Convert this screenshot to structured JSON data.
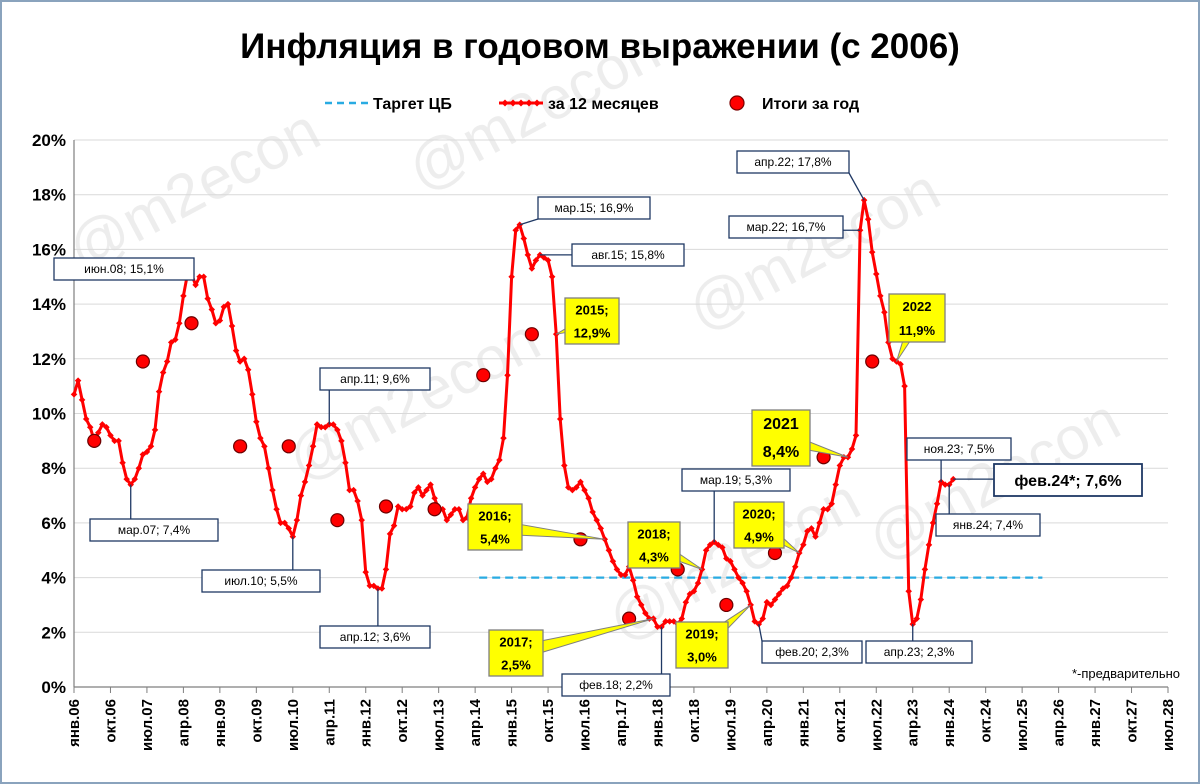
{
  "chart_data": {
    "type": "line",
    "title": "Инфляция в годовом выражении (с 2006)",
    "ylim": [
      0,
      20
    ],
    "xlim": [
      "2006-01",
      "2028-07"
    ],
    "y_ticks": [
      "0%",
      "2%",
      "4%",
      "6%",
      "8%",
      "10%",
      "12%",
      "14%",
      "16%",
      "18%",
      "20%"
    ],
    "x_ticks": [
      "янв.06",
      "окт.06",
      "июл.07",
      "апр.08",
      "янв.09",
      "окт.09",
      "июл.10",
      "апр.11",
      "янв.12",
      "окт.12",
      "июл.13",
      "апр.14",
      "янв.15",
      "окт.15",
      "июл.16",
      "апр.17",
      "янв.18",
      "окт.18",
      "июл.19",
      "апр.20",
      "янв.21",
      "окт.21",
      "июл.22",
      "апр.23",
      "янв.24",
      "окт.24",
      "июл.25",
      "апр.26",
      "янв.27",
      "окт.27",
      "июл.28"
    ],
    "grid": "horizontal",
    "legend_position": "top",
    "legend": {
      "target": "Таргет ЦБ",
      "monthly": "за 12 месяцев",
      "annual": "Итоги за год"
    },
    "target_series": {
      "value": 4,
      "from": "2014-05",
      "to": "2025-12",
      "color": "#29abe2"
    },
    "monthly_series": {
      "color": "#ff0000",
      "points": [
        [
          "2006-01",
          10.7
        ],
        [
          "2006-02",
          11.2
        ],
        [
          "2006-03",
          10.5
        ],
        [
          "2006-04",
          9.8
        ],
        [
          "2006-05",
          9.5
        ],
        [
          "2006-06",
          9.0
        ],
        [
          "2006-07",
          9.3
        ],
        [
          "2006-08",
          9.6
        ],
        [
          "2006-09",
          9.5
        ],
        [
          "2006-10",
          9.2
        ],
        [
          "2006-11",
          9.0
        ],
        [
          "2006-12",
          9.0
        ],
        [
          "2007-01",
          8.2
        ],
        [
          "2007-02",
          7.6
        ],
        [
          "2007-03",
          7.4
        ],
        [
          "2007-04",
          7.6
        ],
        [
          "2007-05",
          8.0
        ],
        [
          "2007-06",
          8.5
        ],
        [
          "2007-07",
          8.6
        ],
        [
          "2007-08",
          8.8
        ],
        [
          "2007-09",
          9.4
        ],
        [
          "2007-10",
          10.8
        ],
        [
          "2007-11",
          11.5
        ],
        [
          "2007-12",
          11.9
        ],
        [
          "2008-01",
          12.6
        ],
        [
          "2008-02",
          12.7
        ],
        [
          "2008-03",
          13.3
        ],
        [
          "2008-04",
          14.3
        ],
        [
          "2008-05",
          15.1
        ],
        [
          "2008-06",
          15.1
        ],
        [
          "2008-07",
          14.7
        ],
        [
          "2008-08",
          15.0
        ],
        [
          "2008-09",
          15.0
        ],
        [
          "2008-10",
          14.2
        ],
        [
          "2008-11",
          13.8
        ],
        [
          "2008-12",
          13.3
        ],
        [
          "2009-01",
          13.4
        ],
        [
          "2009-02",
          13.9
        ],
        [
          "2009-03",
          14.0
        ],
        [
          "2009-04",
          13.2
        ],
        [
          "2009-05",
          12.3
        ],
        [
          "2009-06",
          11.9
        ],
        [
          "2009-07",
          12.0
        ],
        [
          "2009-08",
          11.6
        ],
        [
          "2009-09",
          10.7
        ],
        [
          "2009-10",
          9.7
        ],
        [
          "2009-11",
          9.1
        ],
        [
          "2009-12",
          8.8
        ],
        [
          "2010-01",
          8.0
        ],
        [
          "2010-02",
          7.2
        ],
        [
          "2010-03",
          6.5
        ],
        [
          "2010-04",
          6.0
        ],
        [
          "2010-05",
          6.0
        ],
        [
          "2010-06",
          5.8
        ],
        [
          "2010-07",
          5.5
        ],
        [
          "2010-08",
          6.1
        ],
        [
          "2010-09",
          7.0
        ],
        [
          "2010-10",
          7.5
        ],
        [
          "2010-11",
          8.1
        ],
        [
          "2010-12",
          8.8
        ],
        [
          "2011-01",
          9.6
        ],
        [
          "2011-02",
          9.5
        ],
        [
          "2011-03",
          9.5
        ],
        [
          "2011-04",
          9.6
        ],
        [
          "2011-05",
          9.6
        ],
        [
          "2011-06",
          9.4
        ],
        [
          "2011-07",
          9.0
        ],
        [
          "2011-08",
          8.2
        ],
        [
          "2011-09",
          7.2
        ],
        [
          "2011-10",
          7.2
        ],
        [
          "2011-11",
          6.8
        ],
        [
          "2011-12",
          6.1
        ],
        [
          "2012-01",
          4.2
        ],
        [
          "2012-02",
          3.7
        ],
        [
          "2012-03",
          3.7
        ],
        [
          "2012-04",
          3.6
        ],
        [
          "2012-05",
          3.6
        ],
        [
          "2012-06",
          4.3
        ],
        [
          "2012-07",
          5.6
        ],
        [
          "2012-08",
          5.9
        ],
        [
          "2012-09",
          6.6
        ],
        [
          "2012-10",
          6.5
        ],
        [
          "2012-11",
          6.5
        ],
        [
          "2012-12",
          6.6
        ],
        [
          "2013-01",
          7.1
        ],
        [
          "2013-02",
          7.3
        ],
        [
          "2013-03",
          7.0
        ],
        [
          "2013-04",
          7.2
        ],
        [
          "2013-05",
          7.4
        ],
        [
          "2013-06",
          6.9
        ],
        [
          "2013-07",
          6.5
        ],
        [
          "2013-08",
          6.5
        ],
        [
          "2013-09",
          6.1
        ],
        [
          "2013-10",
          6.3
        ],
        [
          "2013-11",
          6.5
        ],
        [
          "2013-12",
          6.5
        ],
        [
          "2014-01",
          6.1
        ],
        [
          "2014-02",
          6.2
        ],
        [
          "2014-03",
          6.9
        ],
        [
          "2014-04",
          7.3
        ],
        [
          "2014-05",
          7.6
        ],
        [
          "2014-06",
          7.8
        ],
        [
          "2014-07",
          7.5
        ],
        [
          "2014-08",
          7.6
        ],
        [
          "2014-09",
          8.0
        ],
        [
          "2014-10",
          8.3
        ],
        [
          "2014-11",
          9.1
        ],
        [
          "2014-12",
          11.4
        ],
        [
          "2015-01",
          15.0
        ],
        [
          "2015-02",
          16.7
        ],
        [
          "2015-03",
          16.9
        ],
        [
          "2015-04",
          16.4
        ],
        [
          "2015-05",
          15.8
        ],
        [
          "2015-06",
          15.3
        ],
        [
          "2015-07",
          15.6
        ],
        [
          "2015-08",
          15.8
        ],
        [
          "2015-09",
          15.7
        ],
        [
          "2015-10",
          15.6
        ],
        [
          "2015-11",
          15.0
        ],
        [
          "2015-12",
          12.9
        ],
        [
          "2016-01",
          9.8
        ],
        [
          "2016-02",
          8.1
        ],
        [
          "2016-03",
          7.3
        ],
        [
          "2016-04",
          7.2
        ],
        [
          "2016-05",
          7.3
        ],
        [
          "2016-06",
          7.5
        ],
        [
          "2016-07",
          7.2
        ],
        [
          "2016-08",
          6.9
        ],
        [
          "2016-09",
          6.4
        ],
        [
          "2016-10",
          6.1
        ],
        [
          "2016-11",
          5.8
        ],
        [
          "2016-12",
          5.4
        ],
        [
          "2017-01",
          5.0
        ],
        [
          "2017-02",
          4.6
        ],
        [
          "2017-03",
          4.3
        ],
        [
          "2017-04",
          4.1
        ],
        [
          "2017-05",
          4.1
        ],
        [
          "2017-06",
          4.4
        ],
        [
          "2017-07",
          3.9
        ],
        [
          "2017-08",
          3.3
        ],
        [
          "2017-09",
          3.0
        ],
        [
          "2017-10",
          2.7
        ],
        [
          "2017-11",
          2.5
        ],
        [
          "2017-12",
          2.5
        ],
        [
          "2018-01",
          2.2
        ],
        [
          "2018-02",
          2.2
        ],
        [
          "2018-03",
          2.4
        ],
        [
          "2018-04",
          2.4
        ],
        [
          "2018-05",
          2.4
        ],
        [
          "2018-06",
          2.3
        ],
        [
          "2018-07",
          2.5
        ],
        [
          "2018-08",
          3.1
        ],
        [
          "2018-09",
          3.4
        ],
        [
          "2018-10",
          3.5
        ],
        [
          "2018-11",
          3.8
        ],
        [
          "2018-12",
          4.3
        ],
        [
          "2019-01",
          5.0
        ],
        [
          "2019-02",
          5.2
        ],
        [
          "2019-03",
          5.3
        ],
        [
          "2019-04",
          5.2
        ],
        [
          "2019-05",
          5.1
        ],
        [
          "2019-06",
          4.7
        ],
        [
          "2019-07",
          4.6
        ],
        [
          "2019-08",
          4.3
        ],
        [
          "2019-09",
          4.0
        ],
        [
          "2019-10",
          3.8
        ],
        [
          "2019-11",
          3.5
        ],
        [
          "2019-12",
          3.0
        ],
        [
          "2020-01",
          2.4
        ],
        [
          "2020-02",
          2.3
        ],
        [
          "2020-03",
          2.5
        ],
        [
          "2020-04",
          3.1
        ],
        [
          "2020-05",
          3.0
        ],
        [
          "2020-06",
          3.2
        ],
        [
          "2020-07",
          3.4
        ],
        [
          "2020-08",
          3.6
        ],
        [
          "2020-09",
          3.7
        ],
        [
          "2020-10",
          4.0
        ],
        [
          "2020-11",
          4.4
        ],
        [
          "2020-12",
          4.9
        ],
        [
          "2021-01",
          5.2
        ],
        [
          "2021-02",
          5.7
        ],
        [
          "2021-03",
          5.8
        ],
        [
          "2021-04",
          5.5
        ],
        [
          "2021-05",
          6.0
        ],
        [
          "2021-06",
          6.5
        ],
        [
          "2021-07",
          6.5
        ],
        [
          "2021-08",
          6.7
        ],
        [
          "2021-09",
          7.4
        ],
        [
          "2021-10",
          8.1
        ],
        [
          "2021-11",
          8.4
        ],
        [
          "2021-12",
          8.4
        ],
        [
          "2022-01",
          8.7
        ],
        [
          "2022-02",
          9.2
        ],
        [
          "2022-03",
          16.7
        ],
        [
          "2022-04",
          17.8
        ],
        [
          "2022-05",
          17.1
        ],
        [
          "2022-06",
          15.9
        ],
        [
          "2022-07",
          15.1
        ],
        [
          "2022-08",
          14.3
        ],
        [
          "2022-09",
          13.7
        ],
        [
          "2022-10",
          12.6
        ],
        [
          "2022-11",
          12.0
        ],
        [
          "2022-12",
          11.9
        ],
        [
          "2023-01",
          11.8
        ],
        [
          "2023-02",
          11.0
        ],
        [
          "2023-03",
          3.5
        ],
        [
          "2023-04",
          2.3
        ],
        [
          "2023-05",
          2.5
        ],
        [
          "2023-06",
          3.2
        ],
        [
          "2023-07",
          4.3
        ],
        [
          "2023-08",
          5.2
        ],
        [
          "2023-09",
          6.0
        ],
        [
          "2023-10",
          6.7
        ],
        [
          "2023-11",
          7.5
        ],
        [
          "2023-12",
          7.4
        ],
        [
          "2024-01",
          7.4
        ],
        [
          "2024-02",
          7.6
        ]
      ]
    },
    "annual_series": {
      "color": "#ff0000",
      "points": [
        [
          "2006-06",
          9.0
        ],
        [
          "2007-06",
          11.9
        ],
        [
          "2008-06",
          13.3
        ],
        [
          "2009-06",
          8.8
        ],
        [
          "2010-06",
          8.8
        ],
        [
          "2011-06",
          6.1
        ],
        [
          "2012-06",
          6.6
        ],
        [
          "2013-06",
          6.5
        ],
        [
          "2014-06",
          11.4
        ],
        [
          "2015-06",
          12.9
        ],
        [
          "2016-06",
          5.4
        ],
        [
          "2017-06",
          2.5
        ],
        [
          "2018-06",
          4.3
        ],
        [
          "2019-06",
          3.0
        ],
        [
          "2020-06",
          4.9
        ],
        [
          "2021-06",
          8.4
        ],
        [
          "2022-06",
          11.9
        ]
      ]
    },
    "annotations": [
      {
        "id": "jun08",
        "text": "июн.08; 15,1%",
        "style": "white",
        "at": [
          "2008-05",
          15.1
        ]
      },
      {
        "id": "mar07",
        "text": "мар.07; 7,4%",
        "style": "white",
        "at": [
          "2007-03",
          7.4
        ]
      },
      {
        "id": "jul10",
        "text": "июл.10; 5,5%",
        "style": "white",
        "at": [
          "2010-07",
          5.5
        ]
      },
      {
        "id": "apr11",
        "text": "апр.11; 9,6%",
        "style": "white",
        "at": [
          "2011-04",
          9.6
        ]
      },
      {
        "id": "apr12",
        "text": "апр.12; 3,6%",
        "style": "white",
        "at": [
          "2012-04",
          3.6
        ]
      },
      {
        "id": "mar15",
        "text": "мар.15; 16,9%",
        "style": "white",
        "at": [
          "2015-03",
          16.9
        ]
      },
      {
        "id": "aug15",
        "text": "авг.15; 15,8%",
        "style": "white",
        "at": [
          "2015-08",
          15.8
        ]
      },
      {
        "id": "y2015",
        "lines": [
          "2015;",
          "12,9%"
        ],
        "style": "yellow",
        "at": [
          "2015-12",
          12.9
        ]
      },
      {
        "id": "y2016",
        "lines": [
          "2016;",
          "5,4%"
        ],
        "style": "yellow",
        "at": [
          "2016-12",
          5.4
        ]
      },
      {
        "id": "y2017",
        "lines": [
          "2017;",
          "2,5%"
        ],
        "style": "yellow",
        "at": [
          "2017-12",
          2.5
        ]
      },
      {
        "id": "feb18",
        "text": "фев.18; 2,2%",
        "style": "white",
        "at": [
          "2018-02",
          2.2
        ]
      },
      {
        "id": "y2018",
        "lines": [
          "2018;",
          "4,3%"
        ],
        "style": "yellow",
        "at": [
          "2018-12",
          4.3
        ]
      },
      {
        "id": "mar19",
        "text": "мар.19; 5,3%",
        "style": "white",
        "at": [
          "2019-03",
          5.3
        ]
      },
      {
        "id": "y2019",
        "lines": [
          "2019;",
          "3,0%"
        ],
        "style": "yellow",
        "at": [
          "2019-12",
          3.0
        ]
      },
      {
        "id": "feb20",
        "text": "фев.20; 2,3%",
        "style": "white",
        "at": [
          "2020-02",
          2.3
        ]
      },
      {
        "id": "y2020",
        "lines": [
          "2020;",
          "4,9%"
        ],
        "style": "yellow",
        "at": [
          "2020-12",
          4.9
        ]
      },
      {
        "id": "y2021",
        "lines": [
          "2021",
          "8,4%"
        ],
        "style": "yellow",
        "at": [
          "2021-12",
          8.4
        ]
      },
      {
        "id": "apr22",
        "text": "апр.22; 17,8%",
        "style": "white",
        "at": [
          "2022-04",
          17.8
        ]
      },
      {
        "id": "mar22",
        "text": "мар.22; 16,7%",
        "style": "white",
        "at": [
          "2022-03",
          16.7
        ]
      },
      {
        "id": "y2022",
        "lines": [
          "2022",
          "11,9%"
        ],
        "style": "yellow",
        "at": [
          "2022-12",
          11.9
        ]
      },
      {
        "id": "apr23",
        "text": "апр.23; 2,3%",
        "style": "white",
        "at": [
          "2023-04",
          2.3
        ]
      },
      {
        "id": "nov23",
        "text": "ноя.23; 7,5%",
        "style": "white",
        "at": [
          "2023-11",
          7.5
        ]
      },
      {
        "id": "jan24",
        "text": "янв.24; 7,4%",
        "style": "white",
        "at": [
          "2024-01",
          7.4
        ]
      },
      {
        "id": "feb24",
        "text": "фев.24*; 7,6%",
        "style": "bigwhite",
        "at": [
          "2024-02",
          7.6
        ]
      }
    ],
    "footnote": "*-предварительно",
    "watermark": "@m2econ"
  }
}
